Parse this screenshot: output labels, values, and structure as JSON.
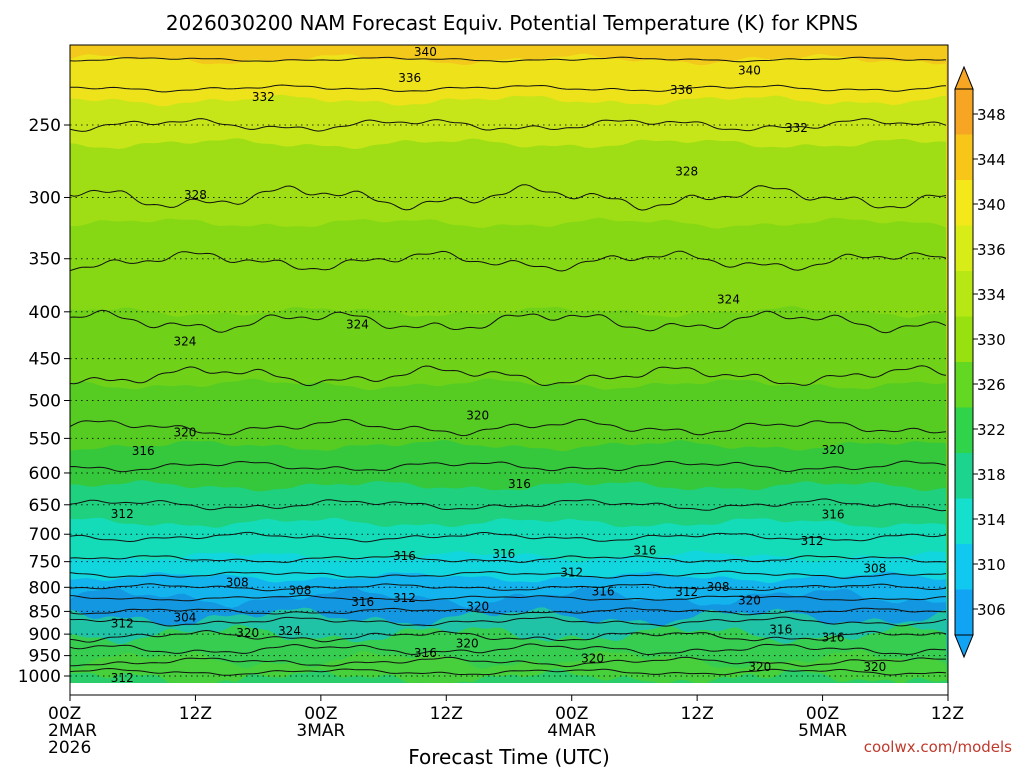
{
  "chart_data": {
    "type": "heatmap",
    "title": "2026030200 NAM Forecast Equiv. Potential Temperature (K) for KPNS",
    "xlabel": "Forecast Time (UTC)",
    "ylabel": "",
    "x_ticks": [
      {
        "hour": 0,
        "lines": [
          "00Z",
          "2MAR",
          "2026"
        ]
      },
      {
        "hour": 12,
        "lines": [
          "12Z"
        ]
      },
      {
        "hour": 24,
        "lines": [
          "00Z",
          "3MAR"
        ]
      },
      {
        "hour": 36,
        "lines": [
          "12Z"
        ]
      },
      {
        "hour": 48,
        "lines": [
          "00Z",
          "4MAR"
        ]
      },
      {
        "hour": 60,
        "lines": [
          "12Z"
        ]
      },
      {
        "hour": 72,
        "lines": [
          "00Z",
          "5MAR"
        ]
      },
      {
        "hour": 84,
        "lines": [
          "12Z"
        ]
      }
    ],
    "xlim": [
      0,
      84
    ],
    "y_ticks": [
      250,
      300,
      350,
      400,
      450,
      500,
      550,
      600,
      650,
      700,
      750,
      800,
      850,
      900,
      950,
      1000
    ],
    "ylim": [
      200,
      1020
    ],
    "colorbar": {
      "labels": [
        348,
        344,
        340,
        336,
        334,
        330,
        326,
        322,
        318,
        314,
        310,
        306
      ],
      "colors": [
        "#f6a623",
        "#f8c619",
        "#f4e81a",
        "#d8ec18",
        "#b8e814",
        "#98e010",
        "#62d822",
        "#2fd44a",
        "#1dd48f",
        "#14e0cd",
        "#10c8f0",
        "#12a4f4"
      ]
    },
    "bands": [
      {
        "p": 200,
        "value": 344,
        "color": "#f3c91c"
      },
      {
        "p": 212,
        "value": 340,
        "color": "#eee21a"
      },
      {
        "p": 235,
        "value": 336,
        "color": "#c6e619"
      },
      {
        "p": 262,
        "value": 332,
        "color": "#9fde14"
      },
      {
        "p": 320,
        "value": 328,
        "color": "#87d814"
      },
      {
        "p": 400,
        "value": 326,
        "color": "#6fd219"
      },
      {
        "p": 480,
        "value": 324,
        "color": "#56cc22"
      },
      {
        "p": 560,
        "value": 322,
        "color": "#35c83c"
      },
      {
        "p": 620,
        "value": 318,
        "color": "#1fd07f"
      },
      {
        "p": 680,
        "value": 314,
        "color": "#14dcb8"
      },
      {
        "p": 740,
        "value": 312,
        "color": "#12d6dd"
      },
      {
        "p": 780,
        "value": 310,
        "color": "#13b4ee"
      },
      {
        "p": 820,
        "value": 306,
        "color": "#1397e0"
      },
      {
        "p": 862,
        "value": 310,
        "color": "#21c3a6"
      },
      {
        "p": 900,
        "value": 318,
        "color": "#36cd50"
      },
      {
        "p": 960,
        "value": 322,
        "color": "#47cf3c"
      },
      {
        "p": 1008,
        "value": 318,
        "color": "#2bcd6a"
      },
      {
        "p": 1020,
        "value": 314,
        "color": "#2bcd6a"
      }
    ],
    "contours": [
      {
        "value": 340,
        "p": 212,
        "amp": 4
      },
      {
        "value": 336,
        "p": 228,
        "amp": 6
      },
      {
        "value": 332,
        "p": 250,
        "amp": 12
      },
      {
        "value": 328,
        "p": 300,
        "amp": 22
      },
      {
        "value": 326,
        "p": 352,
        "amp": 18
      },
      {
        "value": 324,
        "p": 410,
        "amp": 20
      },
      {
        "value": 322,
        "p": 470,
        "amp": 18
      },
      {
        "value": 320,
        "p": 535,
        "amp": 14
      },
      {
        "value": 318,
        "p": 590,
        "amp": 10
      },
      {
        "value": 316,
        "p": 650,
        "amp": 10
      },
      {
        "value": 314,
        "p": 705,
        "amp": 8
      },
      {
        "value": 312,
        "p": 745,
        "amp": 7
      },
      {
        "value": 310,
        "p": 775,
        "amp": 6
      },
      {
        "value": 308,
        "p": 800,
        "amp": 6
      },
      {
        "value": 306,
        "p": 822,
        "amp": 5
      },
      {
        "value": 308,
        "p": 850,
        "amp": 6
      },
      {
        "value": 312,
        "p": 872,
        "amp": 8
      },
      {
        "value": 316,
        "p": 905,
        "amp": 10
      },
      {
        "value": 320,
        "p": 935,
        "amp": 10
      },
      {
        "value": 324,
        "p": 965,
        "amp": 8
      },
      {
        "value": 320,
        "p": 990,
        "amp": 6
      }
    ],
    "contour_labels": [
      {
        "text": "340",
        "hour": 34.0,
        "p": 208
      },
      {
        "text": "340",
        "hour": 65.0,
        "p": 218
      },
      {
        "text": "336",
        "hour": 32.5,
        "p": 222
      },
      {
        "text": "336",
        "hour": 58.5,
        "p": 229
      },
      {
        "text": "332",
        "hour": 18.5,
        "p": 233
      },
      {
        "text": "332",
        "hour": 69.5,
        "p": 252
      },
      {
        "text": "328",
        "hour": 12.0,
        "p": 298
      },
      {
        "text": "328",
        "hour": 59.0,
        "p": 281
      },
      {
        "text": "324",
        "hour": 11.0,
        "p": 431
      },
      {
        "text": "324",
        "hour": 27.5,
        "p": 413
      },
      {
        "text": "324",
        "hour": 63.0,
        "p": 388
      },
      {
        "text": "320",
        "hour": 11.0,
        "p": 542
      },
      {
        "text": "320",
        "hour": 39.0,
        "p": 519
      },
      {
        "text": "320",
        "hour": 73.0,
        "p": 566
      },
      {
        "text": "316",
        "hour": 7.0,
        "p": 568
      },
      {
        "text": "316",
        "hour": 43.0,
        "p": 617
      },
      {
        "text": "316",
        "hour": 73.0,
        "p": 666
      },
      {
        "text": "316",
        "hour": 32.0,
        "p": 739
      },
      {
        "text": "316",
        "hour": 41.5,
        "p": 736
      },
      {
        "text": "316",
        "hour": 55.0,
        "p": 729
      },
      {
        "text": "312",
        "hour": 5.0,
        "p": 665
      },
      {
        "text": "312",
        "hour": 71.0,
        "p": 712
      },
      {
        "text": "312",
        "hour": 48.0,
        "p": 771
      },
      {
        "text": "312",
        "hour": 32.0,
        "p": 822
      },
      {
        "text": "312",
        "hour": 59.0,
        "p": 810
      },
      {
        "text": "312",
        "hour": 5.0,
        "p": 876
      },
      {
        "text": "312",
        "hour": 5.0,
        "p": 1005
      },
      {
        "text": "308",
        "hour": 16.0,
        "p": 790
      },
      {
        "text": "308",
        "hour": 22.0,
        "p": 806
      },
      {
        "text": "308",
        "hour": 62.0,
        "p": 799
      },
      {
        "text": "308",
        "hour": 77.0,
        "p": 763
      },
      {
        "text": "304",
        "hour": 11.0,
        "p": 863
      },
      {
        "text": "316",
        "hour": 28.0,
        "p": 830
      },
      {
        "text": "316",
        "hour": 51.0,
        "p": 808
      },
      {
        "text": "316",
        "hour": 68.0,
        "p": 890
      },
      {
        "text": "316",
        "hour": 73.0,
        "p": 908
      },
      {
        "text": "316",
        "hour": 34.0,
        "p": 944
      },
      {
        "text": "320",
        "hour": 39.0,
        "p": 840
      },
      {
        "text": "320",
        "hour": 65.0,
        "p": 827
      },
      {
        "text": "320",
        "hour": 17.0,
        "p": 898
      },
      {
        "text": "320",
        "hour": 38.0,
        "p": 921
      },
      {
        "text": "320",
        "hour": 50.0,
        "p": 957
      },
      {
        "text": "320",
        "hour": 66.0,
        "p": 977
      },
      {
        "text": "320",
        "hour": 77.0,
        "p": 978
      },
      {
        "text": "324",
        "hour": 21.0,
        "p": 893
      }
    ],
    "grid": "dotted horizontal lines at each pressure tick",
    "surface_color": "#a0522d",
    "credit": "coolwx.com/models"
  }
}
